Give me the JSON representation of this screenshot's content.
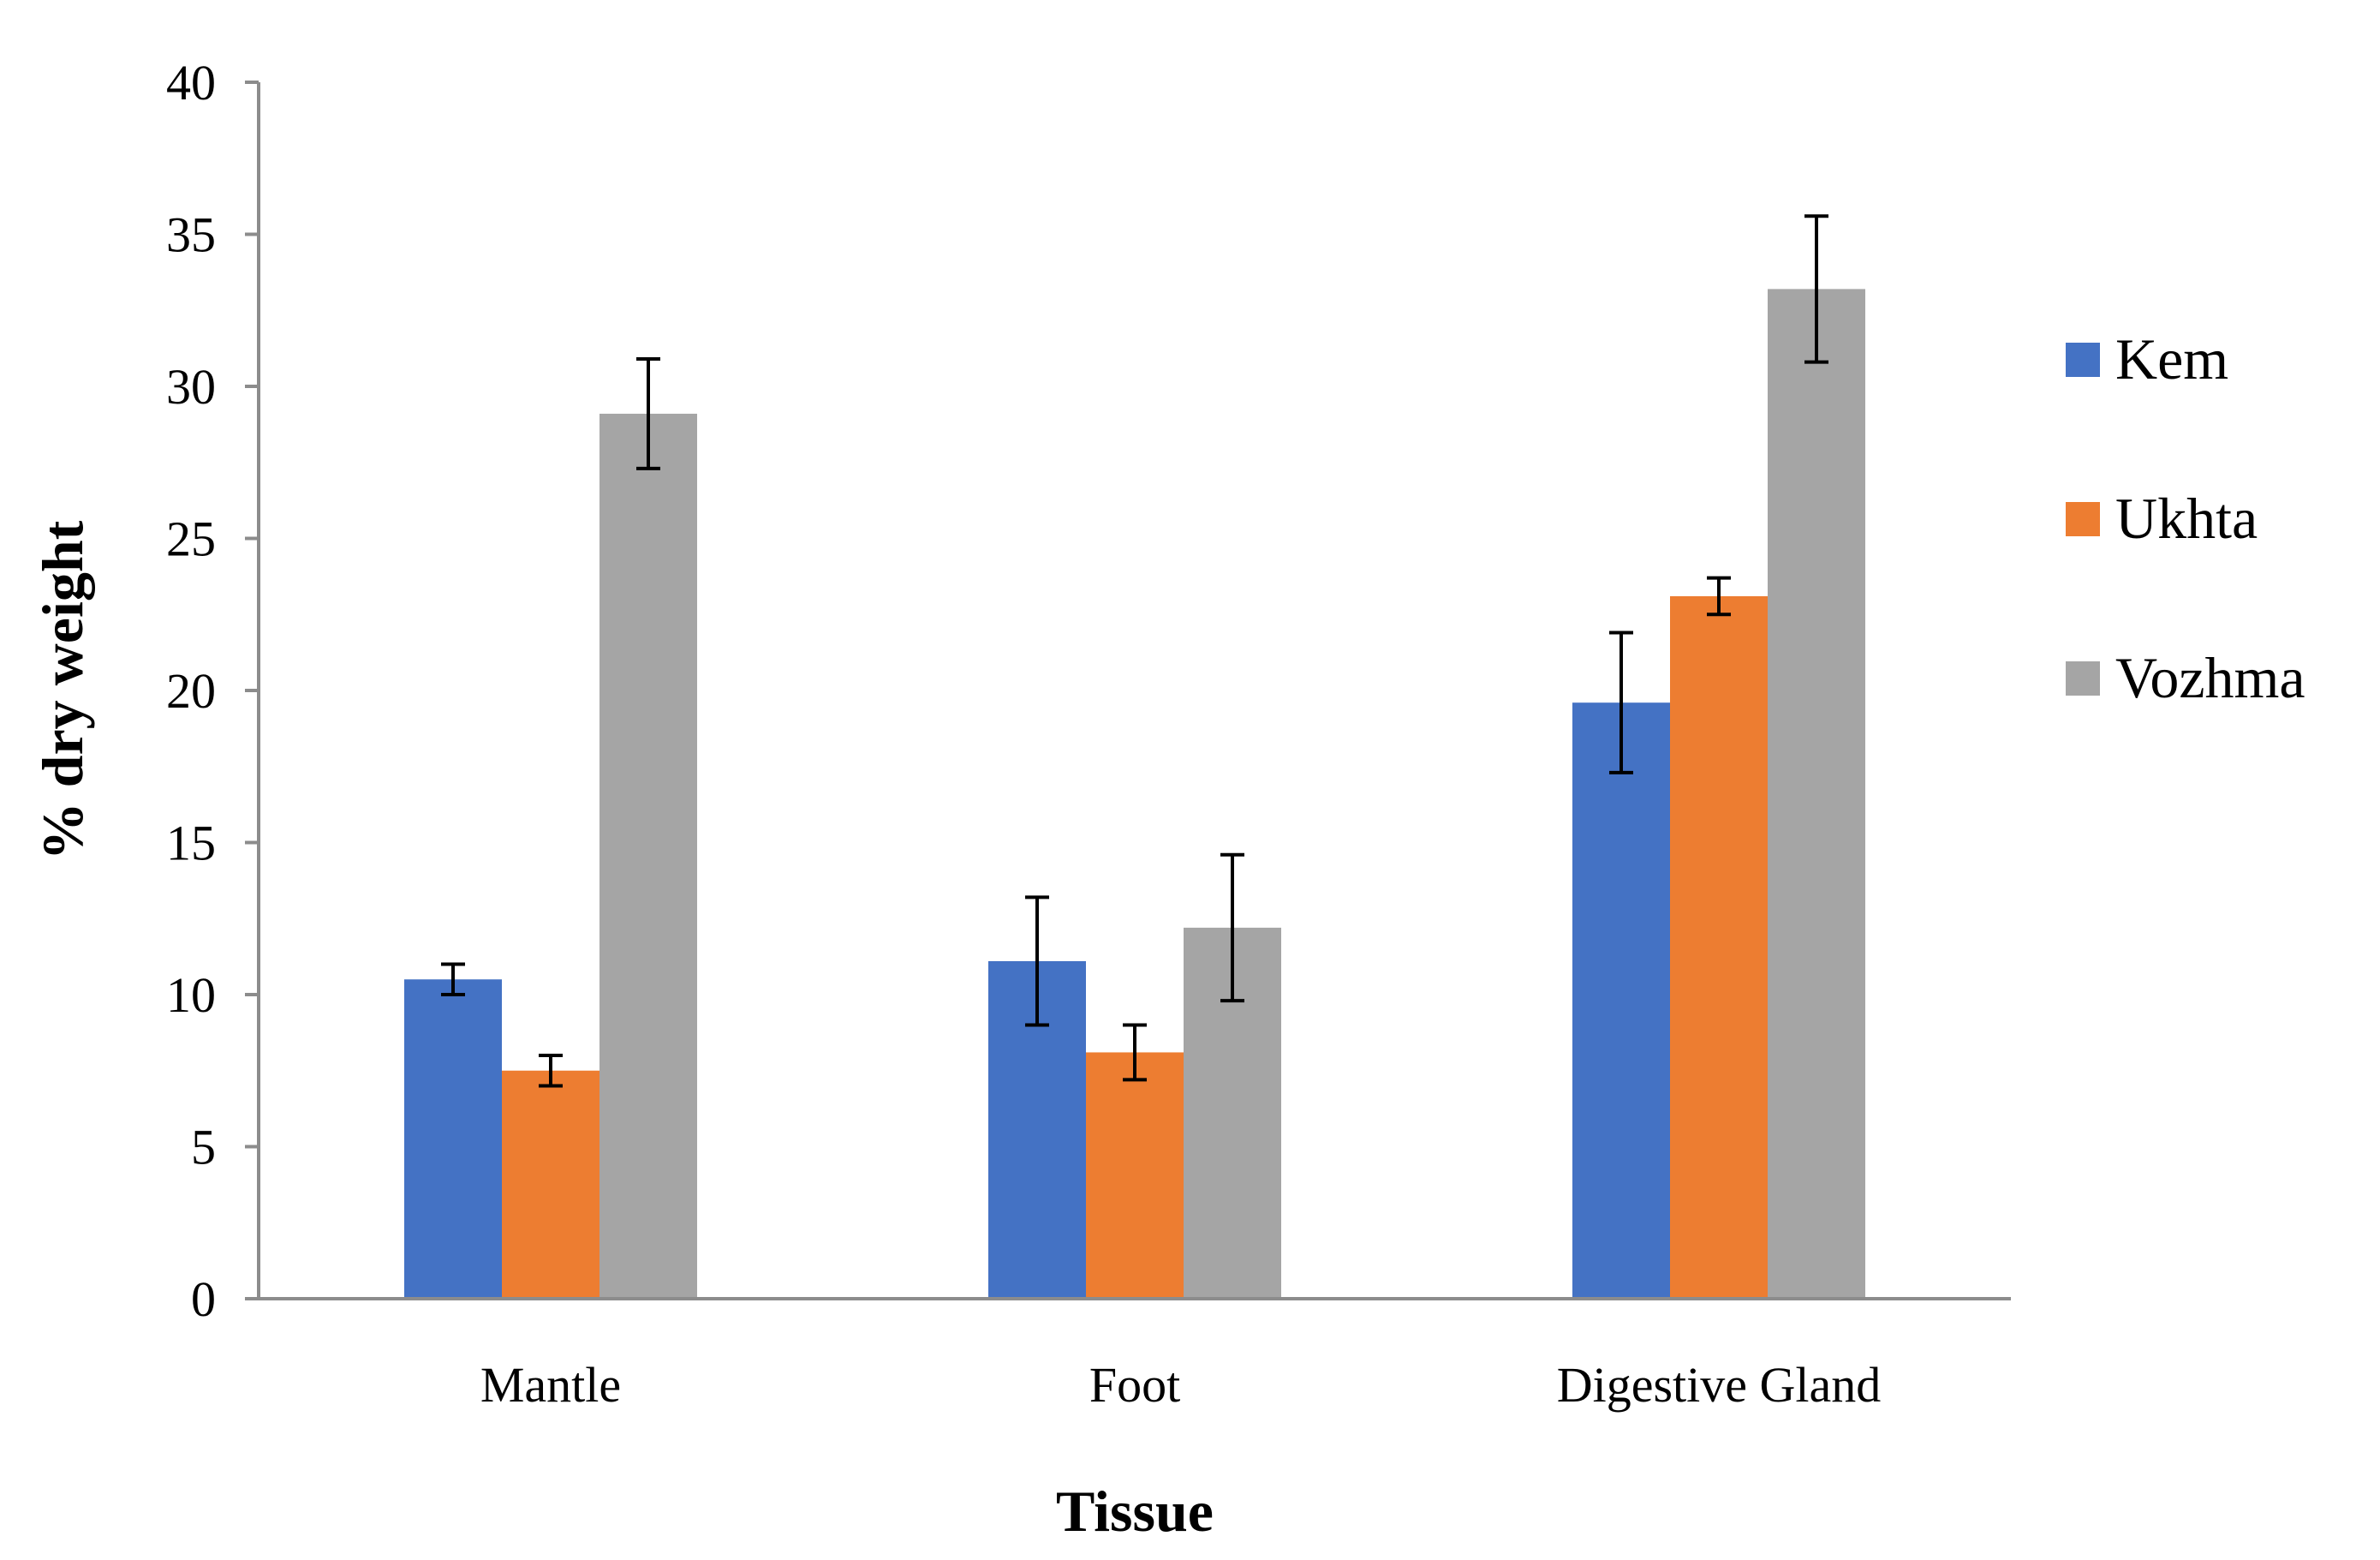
{
  "chart_data": {
    "type": "bar",
    "title": "",
    "xlabel": "Tissue",
    "ylabel": "% dry weight",
    "ylim": [
      0,
      40
    ],
    "yticks": [
      0,
      5,
      10,
      15,
      20,
      25,
      30,
      35,
      40
    ],
    "grid": false,
    "legend_position": "right",
    "categories": [
      "Mantle",
      "Foot",
      "Digestive Gland"
    ],
    "series": [
      {
        "name": "Kem",
        "color": "#4472C4",
        "values": [
          10.5,
          11.1,
          19.6
        ],
        "errors": [
          0.5,
          2.1,
          2.3
        ]
      },
      {
        "name": "Ukhta",
        "color": "#ED7D31",
        "values": [
          7.5,
          8.1,
          23.1
        ],
        "errors": [
          0.5,
          0.9,
          0.6
        ]
      },
      {
        "name": "Vozhma",
        "color": "#A5A5A5",
        "values": [
          29.1,
          12.2,
          33.2
        ],
        "errors": [
          1.8,
          2.4,
          2.4
        ]
      }
    ]
  }
}
